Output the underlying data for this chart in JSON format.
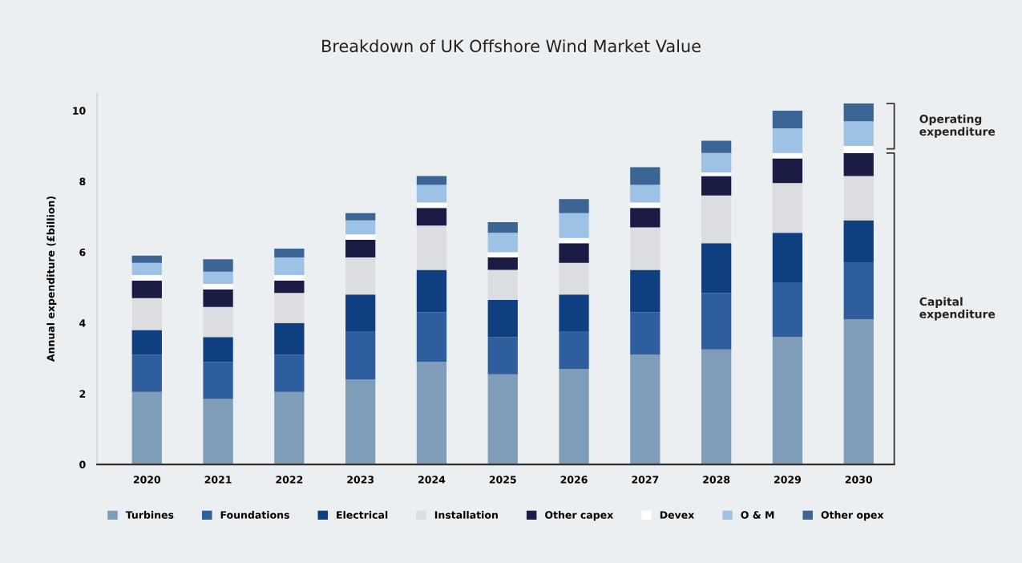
{
  "chart_data": {
    "type": "bar",
    "title": "Breakdown of UK Offshore Wind Market Value",
    "ylabel": "Annual expenditure (£billion)",
    "categories": [
      "2020",
      "2021",
      "2022",
      "2023",
      "2024",
      "2025",
      "2026",
      "2027",
      "2028",
      "2029",
      "2030"
    ],
    "stacked": true,
    "ylim": [
      0,
      10.5
    ],
    "yticks": [
      0,
      2,
      4,
      6,
      8,
      10
    ],
    "grid": false,
    "legend": "bottom",
    "series": [
      {
        "name": "Turbines",
        "color": "#7f9cb8",
        "values": [
          2.05,
          1.85,
          2.05,
          2.4,
          2.9,
          2.55,
          2.7,
          3.1,
          3.25,
          3.6,
          4.1
        ]
      },
      {
        "name": "Foundations",
        "color": "#2e5e9e",
        "values": [
          1.05,
          1.05,
          1.05,
          1.35,
          1.4,
          1.05,
          1.05,
          1.2,
          1.6,
          1.55,
          1.6
        ]
      },
      {
        "name": "Electrical",
        "color": "#0f3f80",
        "values": [
          0.7,
          0.7,
          0.9,
          1.05,
          1.2,
          1.05,
          1.05,
          1.2,
          1.4,
          1.4,
          1.2
        ]
      },
      {
        "name": "Installation",
        "color": "#dcdde0",
        "values": [
          0.9,
          0.85,
          0.85,
          1.05,
          1.25,
          0.85,
          0.9,
          1.2,
          1.35,
          1.4,
          1.25
        ]
      },
      {
        "name": "Other capex",
        "color": "#1b1c44",
        "values": [
          0.5,
          0.5,
          0.35,
          0.5,
          0.5,
          0.35,
          0.55,
          0.55,
          0.55,
          0.7,
          0.65
        ]
      },
      {
        "name": "Devex",
        "color": "#ffffff",
        "values": [
          0.15,
          0.15,
          0.15,
          0.15,
          0.15,
          0.15,
          0.15,
          0.15,
          0.1,
          0.15,
          0.2
        ]
      },
      {
        "name": "O & M",
        "color": "#9ec1e6",
        "values": [
          0.35,
          0.35,
          0.5,
          0.4,
          0.5,
          0.55,
          0.7,
          0.5,
          0.55,
          0.7,
          0.7
        ]
      },
      {
        "name": "Other opex",
        "color": "#3b6594",
        "values": [
          0.2,
          0.35,
          0.25,
          0.2,
          0.25,
          0.3,
          0.4,
          0.5,
          0.35,
          0.5,
          0.5
        ]
      }
    ],
    "annotations": [
      "Operating expenditure",
      "Capital expenditure"
    ]
  }
}
